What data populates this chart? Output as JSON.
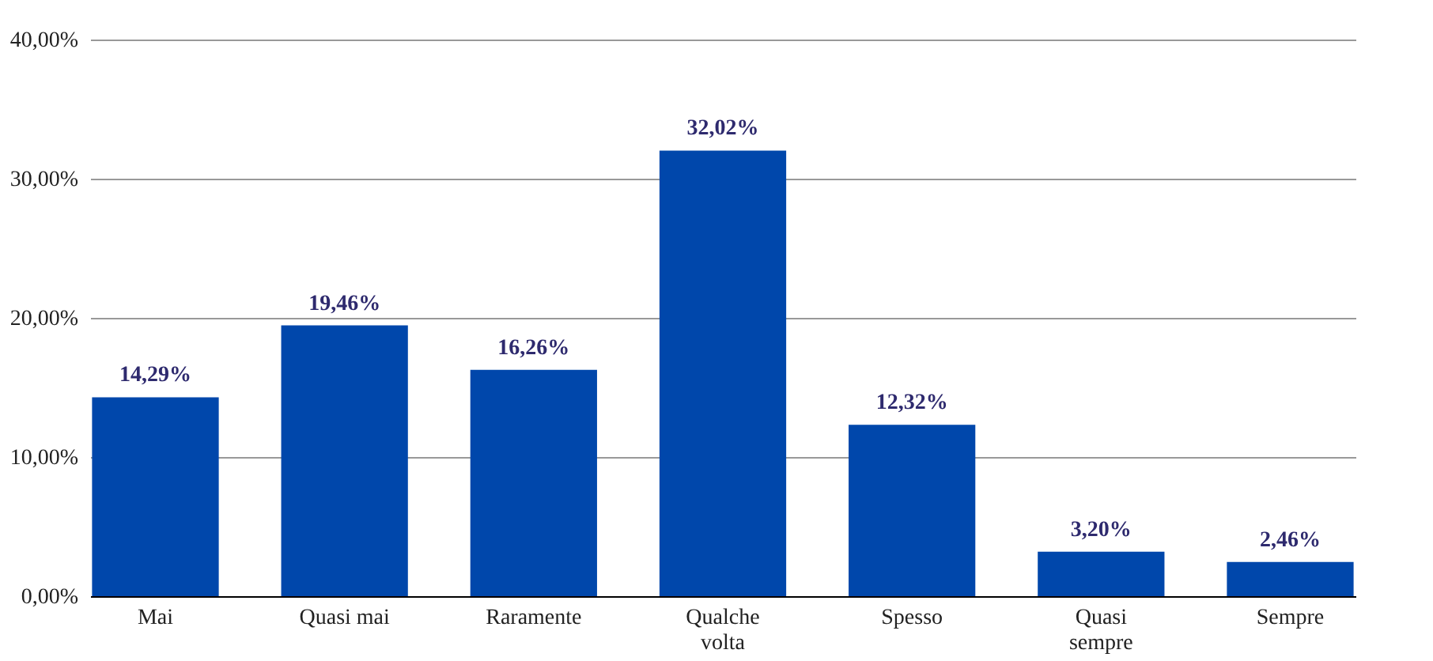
{
  "chart_data": {
    "type": "bar",
    "categories": [
      "Mai",
      "Quasi mai",
      "Raramente",
      "Qualche volta",
      "Spesso",
      "Quasi sempre",
      "Sempre"
    ],
    "values": [
      14.29,
      19.46,
      16.26,
      32.02,
      12.32,
      3.2,
      2.46
    ],
    "value_labels": [
      "14,29%",
      "19,46%",
      "16,26%",
      "32,02%",
      "12,32%",
      "3,20%",
      "2,46%"
    ],
    "color": "#0047ab",
    "ylim": [
      0,
      40
    ],
    "yticks": [
      {
        "value": 0,
        "label": "0,00%"
      },
      {
        "value": 10,
        "label": "10,00%"
      },
      {
        "value": 20,
        "label": "20,00%"
      },
      {
        "value": 30,
        "label": "30,00%"
      },
      {
        "value": 40,
        "label": "40,00%"
      }
    ],
    "grid": "y"
  }
}
